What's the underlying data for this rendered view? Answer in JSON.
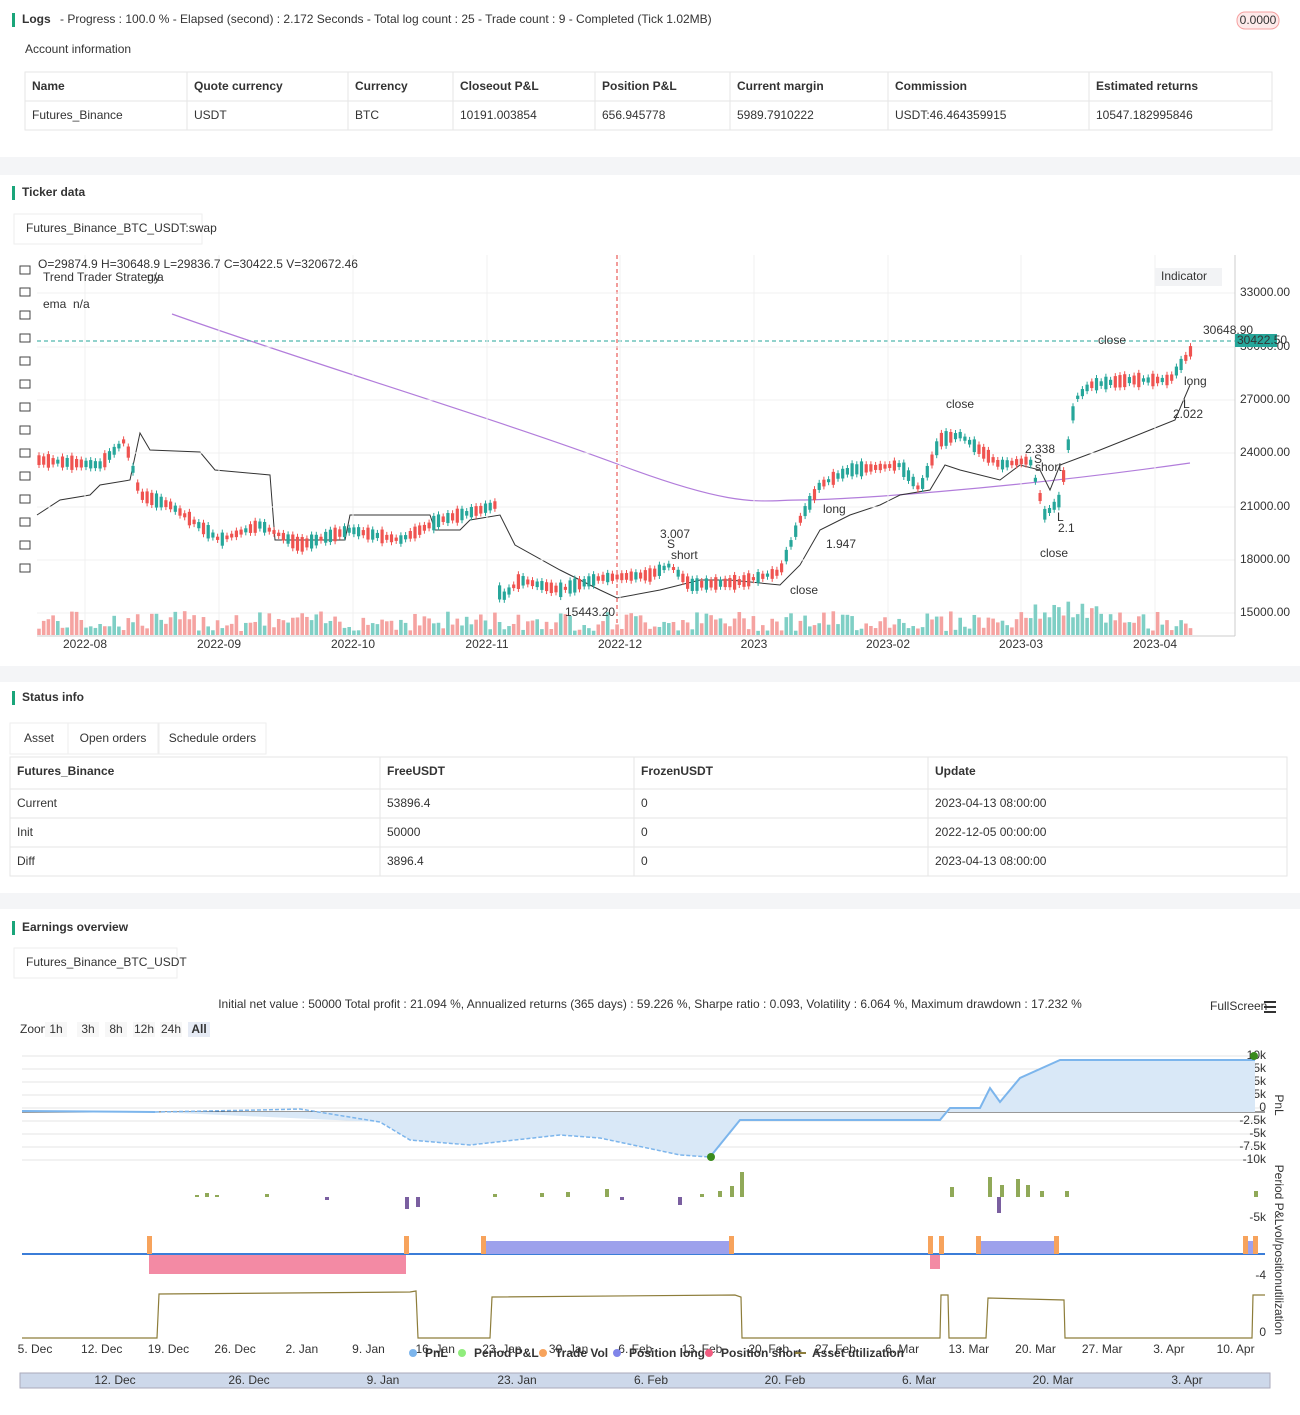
{
  "logs": {
    "title": "Logs",
    "summary": "- Progress : 100.0 % - Elapsed (second) : 2.172  Seconds - Total log count : 25 - Trade count : 9 - Completed (Tick 1.02MB)",
    "badge": "0.0000"
  },
  "account": {
    "title": "Account information",
    "columns": [
      "Name",
      "Quote currency",
      "Currency",
      "Closeout P&L",
      "Position P&L",
      "Current margin",
      "Commission",
      "Estimated returns"
    ],
    "rows": [
      [
        "Futures_Binance",
        "USDT",
        "BTC",
        "10191.003854",
        "656.945778",
        "5989.7910222",
        "USDT:46.464359915",
        "10547.182995846"
      ]
    ]
  },
  "ticker": {
    "title": "Ticker data",
    "tab": "Futures_Binance_BTC_USDT:swap",
    "ohlcv": "O=29874.9 H=30648.9 L=29836.7 C=30422.5 V=320672.46",
    "strategy": "Trend Trader Strategy",
    "strategy_value": "n/a",
    "ema": "ema",
    "ema_value": "n/a",
    "indicator_button": "Indicator",
    "y_ticks": [
      "33000.00",
      "30000.00",
      "27000.00",
      "24000.00",
      "21000.00",
      "18000.00",
      "15000.00"
    ],
    "x_ticks": [
      "2022-08",
      "2022-09",
      "2022-10",
      "2022-11",
      "2022-12",
      "2023",
      "2023-02",
      "2023-03",
      "2023-04"
    ],
    "last_price": "30422.50",
    "high_label": "30648.90",
    "low_label": "15443.20",
    "annotations": [
      "3.007",
      "S",
      "short",
      "close",
      "1.947",
      "long",
      "close",
      "close",
      "2.338",
      "S",
      "short",
      "2.1",
      "L",
      "close",
      "2.022",
      "L",
      "long"
    ]
  },
  "status": {
    "title": "Status info",
    "tabs": [
      "Asset",
      "Open orders",
      "Schedule orders"
    ],
    "columns": [
      "Futures_Binance",
      "FreeUSDT",
      "FrozenUSDT",
      "Update"
    ],
    "rows": [
      [
        "Current",
        "53896.4",
        "0",
        "2023-04-13 08:00:00"
      ],
      [
        "Init",
        "50000",
        "0",
        "2022-12-05 00:00:00"
      ],
      [
        "Diff",
        "3896.4",
        "0",
        "2023-04-13 08:00:00"
      ]
    ]
  },
  "earnings": {
    "title": "Earnings overview",
    "tab": "Futures_Binance_BTC_USDT",
    "summary": "Initial net value : 50000 Total profit : 21.094 %, Annualized returns (365 days) : 59.226 %, Sharpe ratio : 0.093, Volatility : 6.064 %, Maximum drawdown : 17.232 %",
    "fullscreen": "FullScreen",
    "zoom_label": "Zoom",
    "zoom_buttons": [
      "1h",
      "3h",
      "8h",
      "12h",
      "24h",
      "All"
    ],
    "pnl_ticks": [
      "10k",
      "7.5k",
      "5k",
      "2.5k",
      "0",
      "-2.5k",
      "-5k",
      "-7.5k",
      "-10k"
    ],
    "period_tick": "-5k",
    "position_tick": "-4",
    "util_tick": "0",
    "axis_titles": [
      "PnL",
      "Period P&L",
      "vol/position",
      "utilization"
    ],
    "x_ticks": [
      "5. Dec",
      "12. Dec",
      "19. Dec",
      "26. Dec",
      "2. Jan",
      "9. Jan",
      "16. Jan",
      "23. Jan",
      "30. Jan",
      "6. Feb",
      "13. Feb",
      "20. Feb",
      "27. Feb",
      "6. Mar",
      "13. Mar",
      "20. Mar",
      "27. Mar",
      "3. Apr",
      "10. Apr"
    ],
    "legend": [
      "PnL",
      "Period P&L",
      "Trade Vol",
      "Position long",
      "Position short",
      "Asset utilization"
    ],
    "navigator_ticks": [
      "12. Dec",
      "26. Dec",
      "9. Jan",
      "23. Jan",
      "6. Feb",
      "20. Feb",
      "6. Mar",
      "20. Mar",
      "3. Apr"
    ]
  }
}
